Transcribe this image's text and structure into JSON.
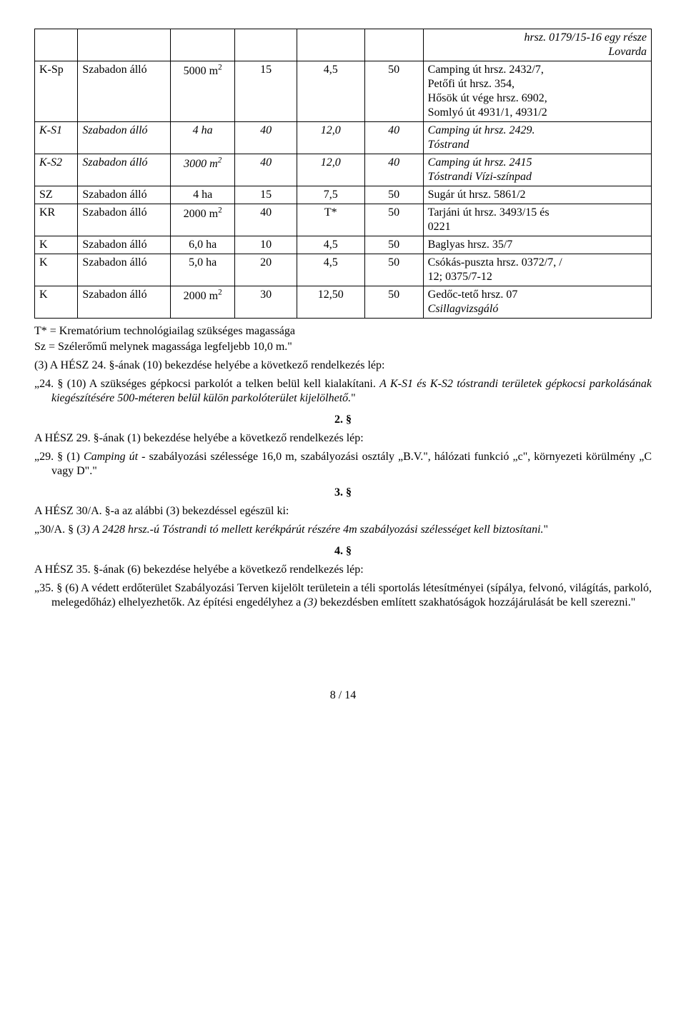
{
  "table": {
    "rows": [
      {
        "c0": "",
        "c1": "",
        "c2": "",
        "c3": "",
        "c4": "",
        "c5": "",
        "c6": "hrsz. 0179/15-16 egy része\nLovarda",
        "c6_style": "right-italic"
      },
      {
        "c0": "K-Sp",
        "c1": "Szabadon álló",
        "c2": "5000 m²",
        "c3": "15",
        "c4": "4,5",
        "c5": "50",
        "c6": "Camping út hrsz. 2432/7,\nPetőfi út hrsz. 354,\nHősök út vége hrsz. 6902,\nSomlyó út 4931/1, 4931/2"
      },
      {
        "c0": "K-S1",
        "c0_style": "italic",
        "c1": "Szabadon álló",
        "c1_style": "italic",
        "c2": "4 ha",
        "c2_style": "italic",
        "c3": "40",
        "c3_style": "italic",
        "c4": "12,0",
        "c4_style": "italic",
        "c5": "40",
        "c5_style": "italic",
        "c6": "Camping út hrsz. 2429.\nTóstrand",
        "c6_style": "italic"
      },
      {
        "c0": "K-S2",
        "c0_style": "italic",
        "c1": "Szabadon álló",
        "c1_style": "italic",
        "c2": "3000 m²",
        "c2_style": "italic",
        "c3": "40",
        "c3_style": "italic",
        "c4": "12,0",
        "c4_style": "italic",
        "c5": "40",
        "c5_style": "italic",
        "c6": "Camping út hrsz. 2415\nTóstrandi Vízi-színpad",
        "c6_style": "italic"
      },
      {
        "c0": "SZ",
        "c1": "Szabadon álló",
        "c2": "4 ha",
        "c3": "15",
        "c4": "7,5",
        "c5": "50",
        "c6": "Sugár út hrsz. 5861/2"
      },
      {
        "c0": "KR",
        "c1": "Szabadon álló",
        "c2": "2000 m²",
        "c3": "40",
        "c4": "T*",
        "c5": "50",
        "c6": "Tarjáni út hrsz. 3493/15 és\n0221"
      },
      {
        "c0": "K",
        "c1": "Szabadon álló",
        "c2": "6,0 ha",
        "c3": "10",
        "c4": "4,5",
        "c5": "50",
        "c6": "Baglyas hrsz. 35/7"
      },
      {
        "c0": "K",
        "c1": "Szabadon álló",
        "c2": "5,0 ha",
        "c3": "20",
        "c4": "4,5",
        "c5": "50",
        "c6": "Csókás-puszta hrsz. 0372/7, /\n12; 0375/7-12"
      },
      {
        "c0": "K",
        "c1": "Szabadon álló",
        "c2": "2000 m²",
        "c3": "30",
        "c4": "12,50",
        "c5": "50",
        "c6": "Gedőc-tető hrsz. 07\nCsillagvizsgáló",
        "c6_style": "mix-italic"
      }
    ]
  },
  "notes": {
    "t_star": "T*  = Krematórium technológiailag szükséges magassága",
    "sz": "Sz = Szélerőmű melynek magassága legfeljebb 10,0 m.\""
  },
  "para3": "(3) A HÉSZ 24. §-ának (10) bekezdése helyébe a következő rendelkezés lép:",
  "quote24_plain": "„24. § (10) A szükséges gépkocsi parkolót a telken belül kell kialakítani. ",
  "quote24_italic": "A K-S1 és K-S2 tóstrandi területek gépkocsi parkolásának kiegészítésére 500-méteren belül külön parkolóterület kijelölhető.",
  "quote24_close": "\"",
  "sec2": "2. §",
  "sec2_intro": "A HÉSZ 29. §-ának (1) bekezdése helyébe a következő rendelkezés lép:",
  "quote29_a": "„29. § (1) ",
  "quote29_b": "Camping út",
  "quote29_c": " - szabályozási szélessége 16,0 m, szabályozási osztály „B.V.\", hálózati funkció „c\", környezeti körülmény „C vagy D\".\"",
  "sec3": "3. §",
  "sec3_intro": "A HÉSZ 30/A. §-a az alábbi (3) bekezdéssel egészül ki:",
  "quote30_a": "„30/A. § (",
  "quote30_b": "3) A 2428 hrsz.-ú Tóstrandi tó mellett kerékpárút részére 4m szabályozási szélességet kell biztosítani.",
  "quote30_c": "\"",
  "sec4": "4. §",
  "sec4_intro": "A HÉSZ 35. §-ának (6) bekezdése helyébe a következő rendelkezés lép:",
  "quote35_a": "„35. § (6) A védett erdőterület Szabályozási Terven kijelölt területein a téli sportolás létesítményei (sípálya, felvonó, világítás, parkoló, melegedőház) elhelyezhetők. Az építési engedélyhez a ",
  "quote35_b": "(3)",
  "quote35_c": " bekezdésben említett szakhatóságok hozzájárulását be kell szerezni.\"",
  "footer": "8 / 14"
}
